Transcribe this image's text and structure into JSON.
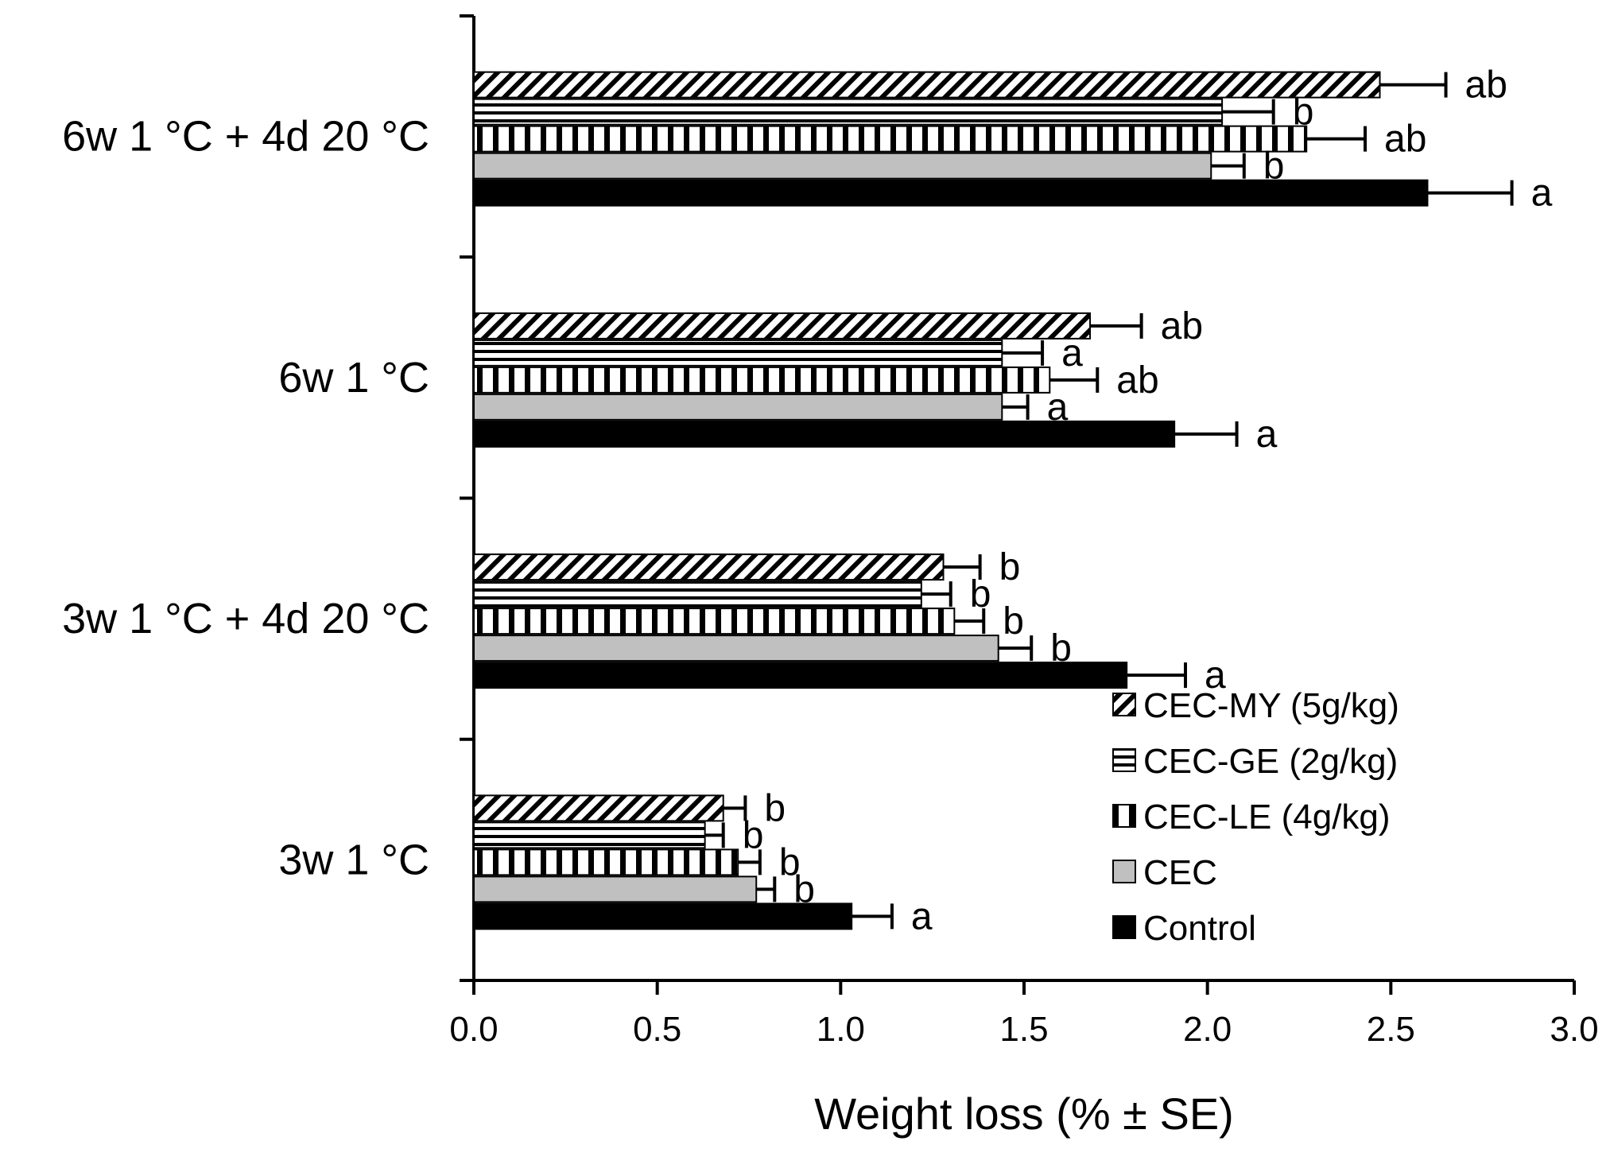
{
  "chart_data": {
    "type": "bar",
    "orientation": "horizontal",
    "title": "",
    "xlabel": "Weight loss (% ± SE)",
    "ylabel": "",
    "xlim": [
      0,
      3
    ],
    "xticks": [
      "0.0",
      "0.5",
      "1.0",
      "1.5",
      "2.0",
      "2.5",
      "3.0"
    ],
    "grid": false,
    "legend_position": "bottom-right",
    "categories": [
      "3w 1 °C",
      "3w 1 °C + 4d 20 °C",
      "6w 1 °C",
      "6w 1 °C + 4d 20 °C"
    ],
    "series": [
      {
        "name": "Control",
        "pattern": "solid-black",
        "values": [
          1.03,
          1.78,
          1.91,
          2.6
        ],
        "se": [
          0.11,
          0.16,
          0.17,
          0.23
        ],
        "letters": [
          "a",
          "a",
          "a",
          "a"
        ]
      },
      {
        "name": "CEC",
        "pattern": "solid-gray",
        "values": [
          0.77,
          1.43,
          1.44,
          2.01
        ],
        "se": [
          0.05,
          0.09,
          0.07,
          0.09
        ],
        "letters": [
          "b",
          "b",
          "a",
          "b"
        ]
      },
      {
        "name": "CEC-LE (4g/kg)",
        "pattern": "vertical-stripes",
        "values": [
          0.72,
          1.31,
          1.57,
          2.27
        ],
        "se": [
          0.06,
          0.08,
          0.13,
          0.16
        ],
        "letters": [
          "b",
          "b",
          "ab",
          "ab"
        ]
      },
      {
        "name": "CEC-GE (2g/kg)",
        "pattern": "horizontal-stripes",
        "values": [
          0.63,
          1.22,
          1.44,
          2.04
        ],
        "se": [
          0.05,
          0.08,
          0.11,
          0.14
        ],
        "letters": [
          "b",
          "b",
          "a",
          "b"
        ]
      },
      {
        "name": "CEC-MY (5g/kg)",
        "pattern": "diagonal-hatch",
        "values": [
          0.68,
          1.28,
          1.68,
          2.47
        ],
        "se": [
          0.06,
          0.1,
          0.14,
          0.18
        ],
        "letters": [
          "b",
          "b",
          "ab",
          "ab"
        ]
      }
    ],
    "legend": [
      "CEC-MY (5g/kg)",
      "CEC-GE (2g/kg)",
      "CEC-LE (4g/kg)",
      "CEC",
      "Control"
    ],
    "colors": {
      "control": "#000000",
      "cec": "#c0c0c0",
      "axis": "#000000",
      "background": "#ffffff"
    }
  }
}
